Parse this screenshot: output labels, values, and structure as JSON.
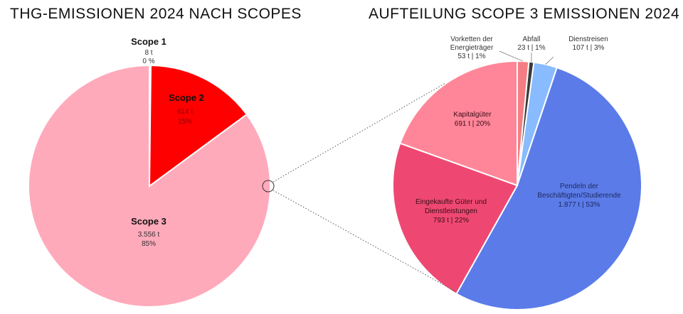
{
  "titles": {
    "left": "THG-EMISSIONEN 2024 NACH SCOPES",
    "right": "AUFTEILUNG SCOPE 3 EMISSIONEN 2024"
  },
  "chart_data": [
    {
      "type": "pie",
      "title": "THG-EMISSIONEN 2024 NACH SCOPES",
      "slices": [
        {
          "name": "Scope 1",
          "value_text": "8 t",
          "percent_text": "0 %",
          "value": 8,
          "color": "#FF0000"
        },
        {
          "name": "Scope 2",
          "value_text": "614 t",
          "percent_text": "15%",
          "value": 614,
          "color": "#FF0000"
        },
        {
          "name": "Scope 3",
          "value_text": "3.556 t",
          "percent_text": "85%",
          "value": 3556,
          "color": "#FFAABB"
        }
      ]
    },
    {
      "type": "pie",
      "title": "AUFTEILUNG SCOPE 3 EMISSIONEN 2024",
      "slices": [
        {
          "name": "Vorketten der Energieträger",
          "label_lines": [
            "Vorketten der",
            "Energieträger",
            "53 t | 1%"
          ],
          "value": 53,
          "color": "#F47E84"
        },
        {
          "name": "Abfall",
          "label_lines": [
            "Abfall",
            "23 t | 1%"
          ],
          "value": 23,
          "color": "#3A3A3A"
        },
        {
          "name": "Dienstreisen",
          "label_lines": [
            "Dienstreisen",
            "107 t | 3%"
          ],
          "value": 107,
          "color": "#88BBFF"
        },
        {
          "name": "Pendeln der Beschäftigten/Studierende",
          "label_lines": [
            "Pendeln der",
            "Beschäftigten/Studierende",
            "1.877 t | 53%"
          ],
          "value": 1877,
          "color": "#5B7BE8"
        },
        {
          "name": "Eingekaufte Güter und Dienstleistungen",
          "label_lines": [
            "Eingekaufte Güter und",
            "Dienstleistungen",
            "793 t | 22%"
          ],
          "value": 793,
          "color": "#EE4872"
        },
        {
          "name": "Kapitalgüter",
          "label_lines": [
            "Kapitalgüter",
            "691 t | 20%"
          ],
          "value": 691,
          "color": "#FF8698"
        }
      ]
    }
  ]
}
